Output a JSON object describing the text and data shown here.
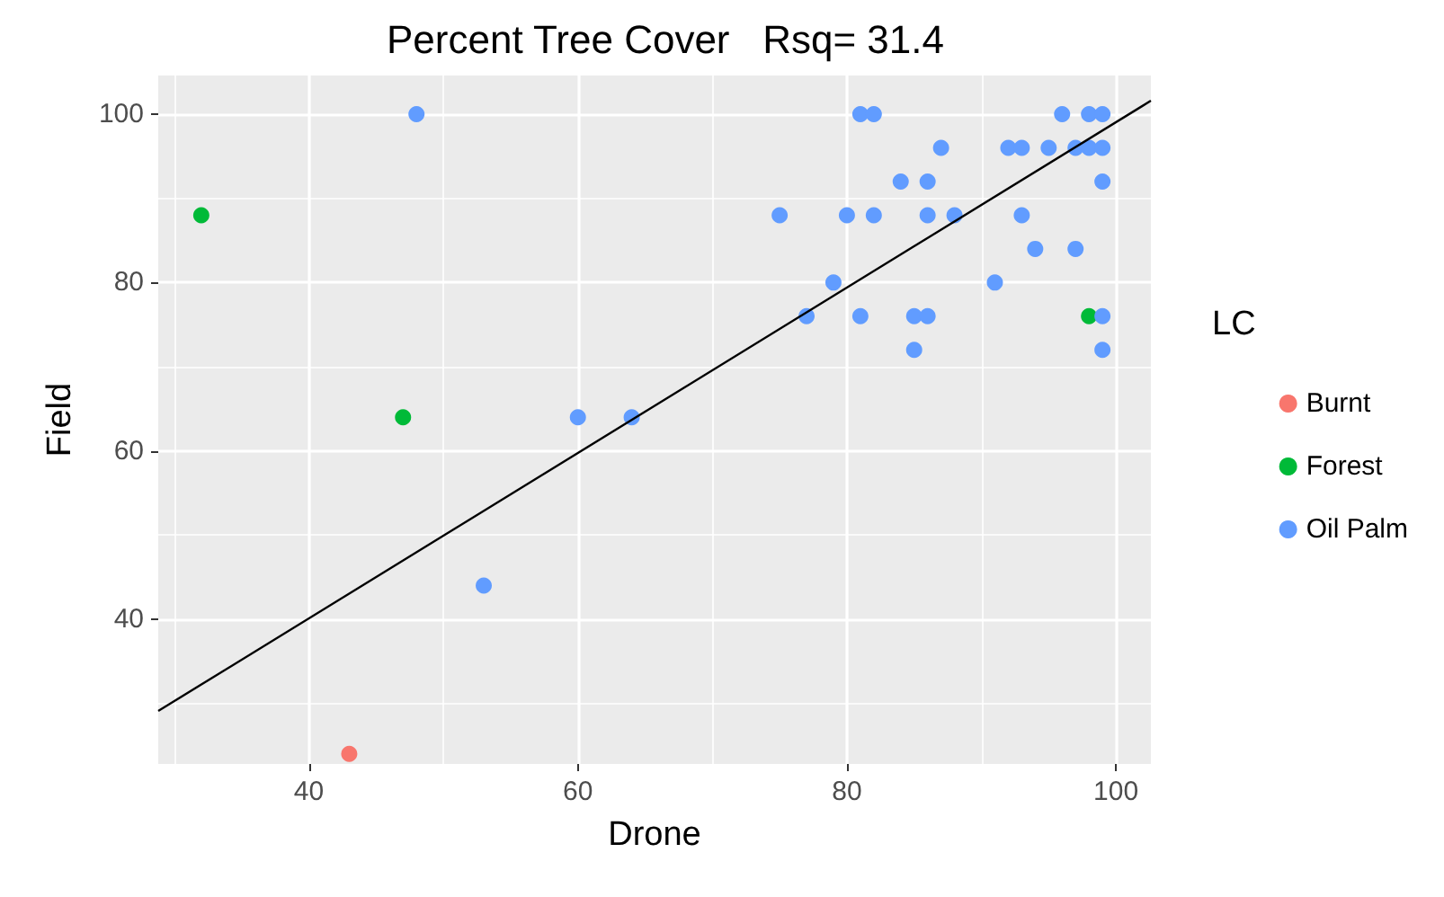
{
  "chart_data": {
    "type": "scatter",
    "title": "Percent Tree Cover   Rsq= 31.4",
    "xlabel": "Drone",
    "ylabel": "Field",
    "legend_title": "LC",
    "xlim": [
      28.8,
      102.6
    ],
    "ylim": [
      22.8,
      104.6
    ],
    "xticks": [
      40,
      60,
      80,
      100
    ],
    "yticks": [
      40,
      60,
      80,
      100
    ],
    "grid": true,
    "legend": "right",
    "marker": "circle",
    "series": [
      {
        "name": "Burnt",
        "color": "#f8766d",
        "x": [
          43
        ],
        "values": [
          24
        ]
      },
      {
        "name": "Forest",
        "color": "#00ba38",
        "x": [
          32,
          47,
          98
        ],
        "values": [
          88,
          64,
          76
        ]
      },
      {
        "name": "Oil Palm",
        "color": "#619cff",
        "x": [
          48,
          53,
          60,
          64,
          75,
          77,
          79,
          80,
          81,
          81,
          82,
          82,
          84,
          85,
          85,
          86,
          86,
          86,
          87,
          88,
          91,
          92,
          93,
          93,
          94,
          95,
          96,
          97,
          97,
          98,
          98,
          99,
          99,
          99,
          99,
          99
        ],
        "values": [
          100,
          44,
          64,
          64,
          88,
          76,
          80,
          88,
          76,
          100,
          100,
          88,
          92,
          76,
          72,
          76,
          92,
          88,
          96,
          88,
          80,
          96,
          96,
          88,
          84,
          96,
          100,
          96,
          84,
          100,
          96,
          100,
          96,
          92,
          76,
          72
        ]
      },
      {
        "type": "line",
        "color": "#000000",
        "marker": "none",
        "x": [
          28.8,
          102.6
        ],
        "values": [
          29.1,
          101.6
        ]
      }
    ]
  }
}
